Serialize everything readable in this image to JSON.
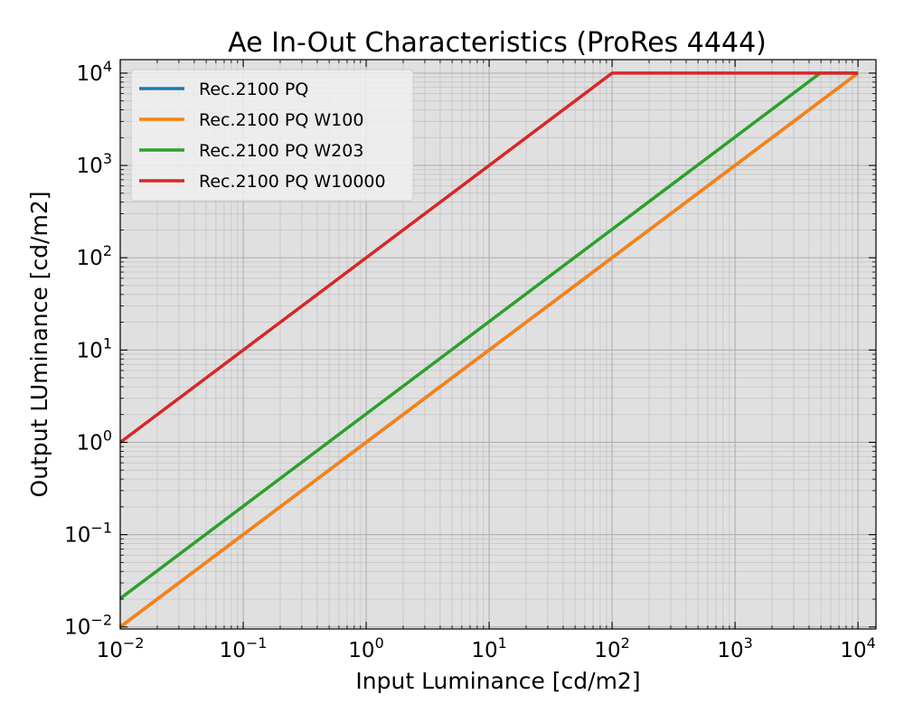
{
  "chart_data": {
    "type": "line",
    "title": "Ae In-Out Characteristics (ProRes 4444)",
    "xlabel": "Input Luminance [cd/m2]",
    "ylabel": "Output LUminance [cd/m2]",
    "xscale": "log",
    "yscale": "log",
    "xlim": [
      0.01,
      14000
    ],
    "ylim": [
      0.0095,
      14000
    ],
    "x_ticks": [
      {
        "base": "10",
        "exp": "−2"
      },
      {
        "base": "10",
        "exp": "−1"
      },
      {
        "base": "10",
        "exp": "0"
      },
      {
        "base": "10",
        "exp": "1"
      },
      {
        "base": "10",
        "exp": "2"
      },
      {
        "base": "10",
        "exp": "3"
      },
      {
        "base": "10",
        "exp": "4"
      }
    ],
    "x_tick_values": [
      0.01,
      0.1,
      1,
      10,
      100,
      1000,
      10000
    ],
    "y_ticks": [
      {
        "base": "10",
        "exp": "−2"
      },
      {
        "base": "10",
        "exp": "−1"
      },
      {
        "base": "10",
        "exp": "0"
      },
      {
        "base": "10",
        "exp": "1"
      },
      {
        "base": "10",
        "exp": "2"
      },
      {
        "base": "10",
        "exp": "3"
      },
      {
        "base": "10",
        "exp": "4"
      }
    ],
    "y_tick_values": [
      0.01,
      0.1,
      1,
      10,
      100,
      1000,
      10000
    ],
    "grid": true,
    "background": "#e0e0e0",
    "legend_position": "top-left",
    "series": [
      {
        "name": "Rec.2100 PQ",
        "color": "#1f77b4",
        "x": [
          0.01,
          10000
        ],
        "y": [
          0.01,
          10000
        ]
      },
      {
        "name": "Rec.2100 PQ W100",
        "color": "#ff7f0e",
        "x": [
          0.01,
          10000
        ],
        "y": [
          0.01,
          10000
        ]
      },
      {
        "name": "Rec.2100 PQ W203",
        "color": "#2ca02c",
        "x": [
          0.01,
          4926,
          10000
        ],
        "y": [
          0.0203,
          10000,
          10000
        ]
      },
      {
        "name": "Rec.2100 PQ W10000",
        "color": "#d62728",
        "x": [
          0.01,
          100,
          10000
        ],
        "y": [
          1,
          10000,
          10000
        ]
      }
    ]
  }
}
